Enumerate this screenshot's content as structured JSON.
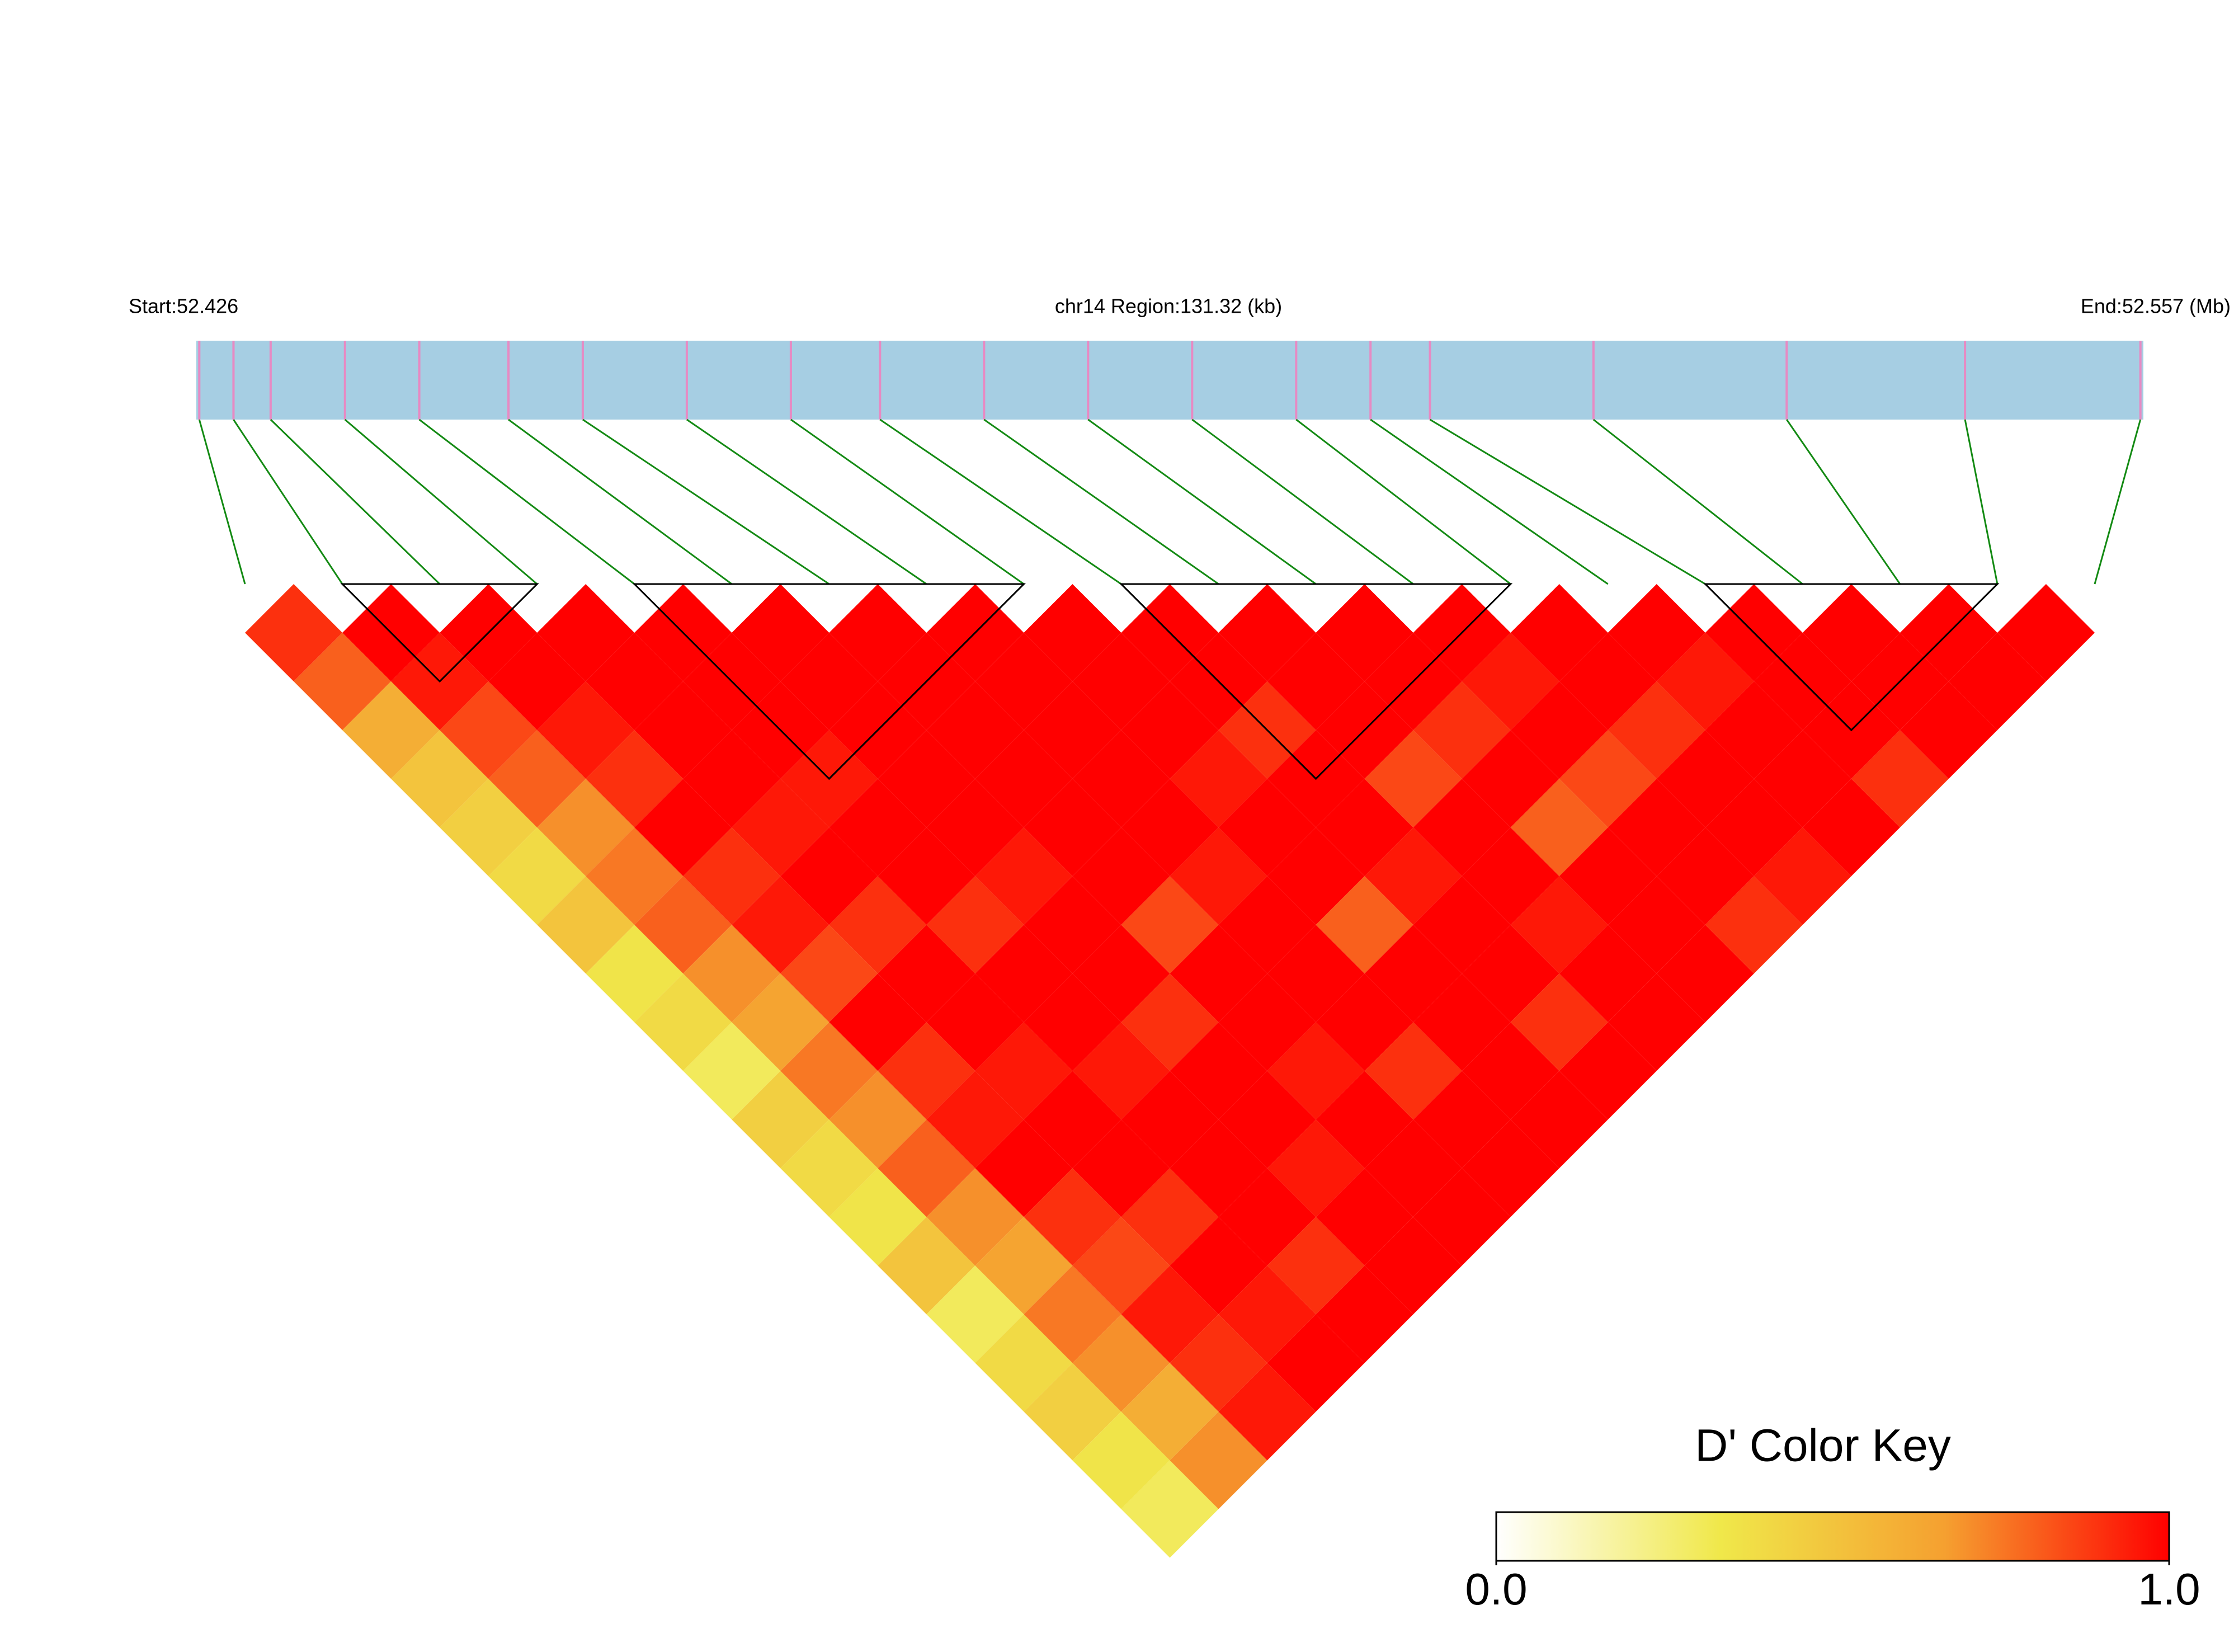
{
  "chart_data": {
    "type": "ld-heatmap",
    "start_label": "Start:52.426",
    "title": "chr14 Region:131.32 (kb)",
    "end_label": "End:52.557 (Mb)",
    "xlim": [
      52.426,
      52.557
    ],
    "positions": [
      52.4262,
      52.4285,
      52.431,
      52.436,
      52.441,
      52.447,
      52.452,
      52.459,
      52.466,
      52.472,
      52.479,
      52.486,
      52.493,
      52.5,
      52.505,
      52.509,
      52.52,
      52.533,
      52.545,
      52.5568
    ],
    "dprime": [
      [
        0.9,
        0.8,
        0.6,
        0.5,
        0.45,
        0.4,
        0.5,
        0.35,
        0.4,
        0.3,
        0.45,
        0.4,
        0.35,
        0.5,
        0.3,
        0.4,
        0.45,
        0.35,
        0.3
      ],
      [
        1,
        0.95,
        0.85,
        0.8,
        0.7,
        0.75,
        0.8,
        0.7,
        0.65,
        0.75,
        0.7,
        0.8,
        0.7,
        0.65,
        0.75,
        0.7,
        0.6,
        0.7
      ],
      [
        1,
        1,
        0.95,
        0.9,
        1,
        0.9,
        0.95,
        0.85,
        1,
        0.9,
        0.95,
        1,
        0.9,
        0.85,
        0.95,
        0.9,
        0.95
      ],
      [
        1,
        1,
        1,
        1,
        0.95,
        1,
        0.9,
        1,
        1,
        0.95,
        1,
        1,
        0.9,
        1,
        0.95,
        1
      ],
      [
        1,
        1,
        1,
        0.95,
        1,
        1,
        0.9,
        1,
        1,
        0.95,
        1,
        1,
        1,
        0.9,
        1
      ],
      [
        1,
        1,
        1,
        1,
        1,
        0.95,
        1,
        1,
        0.9,
        1,
        1,
        0.95,
        1,
        1
      ],
      [
        1,
        1,
        1,
        1,
        1,
        1,
        0.85,
        1,
        1,
        0.95,
        1,
        1,
        1
      ],
      [
        1,
        1,
        1,
        1,
        1,
        0.95,
        1,
        1,
        1,
        0.9,
        1,
        1
      ],
      [
        1,
        1,
        1,
        0.95,
        1,
        1,
        0.8,
        1,
        1,
        1,
        1
      ],
      [
        1,
        1,
        0.9,
        1,
        1,
        0.95,
        1,
        1,
        0.9,
        1
      ],
      [
        1,
        1,
        1,
        0.85,
        1,
        1,
        0.95,
        1,
        1
      ],
      [
        1,
        1,
        0.9,
        1,
        0.8,
        1,
        1,
        1
      ],
      [
        1,
        0.95,
        1,
        0.85,
        1,
        1,
        0.9
      ],
      [
        1,
        1,
        0.9,
        1,
        1,
        0.95
      ],
      [
        1,
        0.95,
        1,
        1,
        1
      ],
      [
        1,
        1,
        1,
        0.9
      ],
      [
        1,
        1,
        1
      ],
      [
        1,
        1
      ],
      [
        1
      ]
    ],
    "blocks": [
      [
        1,
        3
      ],
      [
        4,
        8
      ],
      [
        9,
        13
      ],
      [
        15,
        18
      ]
    ],
    "colorscale": [
      "#ffffff",
      "#f0e84a",
      "#f5a030",
      "#ff0000"
    ],
    "track_color": "#a6cee3",
    "snp_color": "#e78ac3",
    "link_color": "#138a13",
    "colorkey_title": "D' Color Key",
    "colorkey_lim": [
      0,
      1
    ],
    "colorkey_ticks": [
      {
        "value": 0,
        "label": "0.0"
      },
      {
        "value": 1,
        "label": "1.0"
      }
    ]
  }
}
